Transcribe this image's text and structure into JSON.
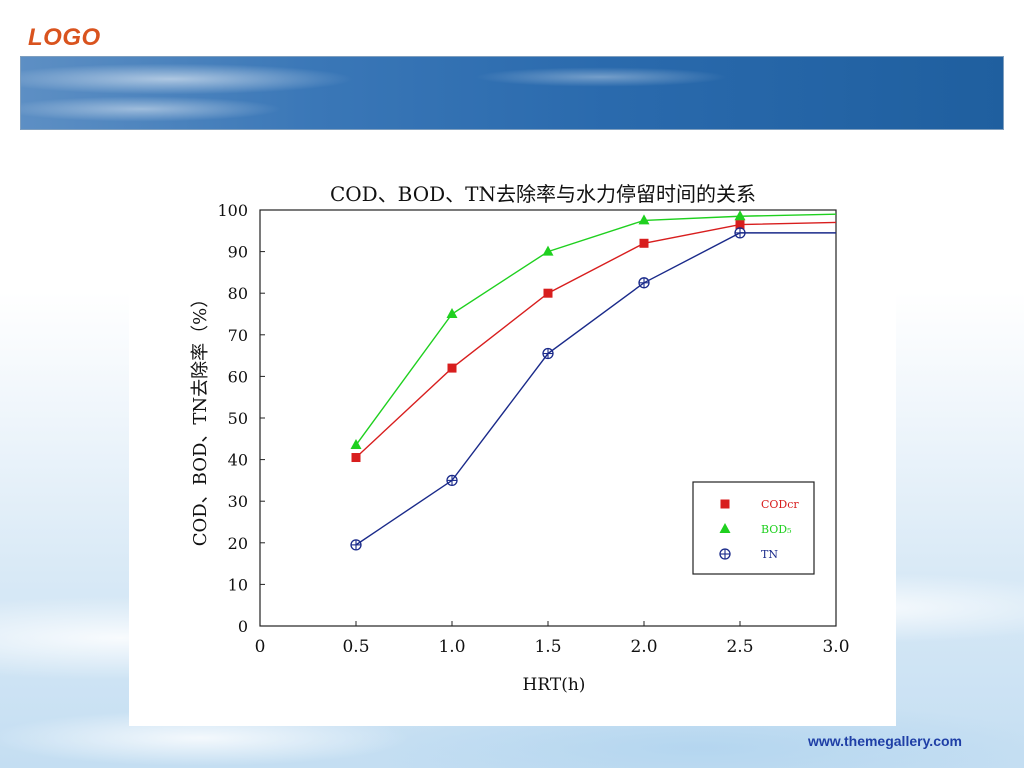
{
  "logo": "LOGO",
  "footer": {
    "url": "www.themegallery.com"
  },
  "colors": {
    "cod": "#d81e1e",
    "bod": "#1fd01f",
    "tn": "#1a2a8a",
    "logo": "#d9531e"
  },
  "chart_data": {
    "type": "line",
    "title": "COD、BOD、TN去除率与水力停留时间的关系",
    "xlabel": "HRT(h)",
    "ylabel": "COD、BOD、TN去除率（%）",
    "xlim": [
      0,
      3.0
    ],
    "ylim": [
      0,
      100
    ],
    "x_ticks": [
      "0",
      "0.5",
      "1.0",
      "1.5",
      "2.0",
      "2.5",
      "3.0"
    ],
    "y_ticks": [
      "0",
      "10",
      "20",
      "30",
      "40",
      "50",
      "60",
      "70",
      "80",
      "90",
      "100"
    ],
    "x": [
      0.5,
      1.0,
      1.5,
      2.0,
      2.5,
      3.0
    ],
    "series": [
      {
        "name": "CODcr",
        "marker": "square",
        "values": [
          40.5,
          62,
          80,
          92,
          96.5,
          97
        ]
      },
      {
        "name": "BOD₅",
        "marker": "triangle",
        "values": [
          43.5,
          75,
          90,
          97.5,
          98.5,
          99
        ]
      },
      {
        "name": "TN",
        "marker": "circle-cross",
        "values": [
          19.5,
          35,
          65.5,
          82.5,
          94.5,
          94.5
        ]
      }
    ],
    "legend_position": "bottom-right",
    "grid": false
  }
}
